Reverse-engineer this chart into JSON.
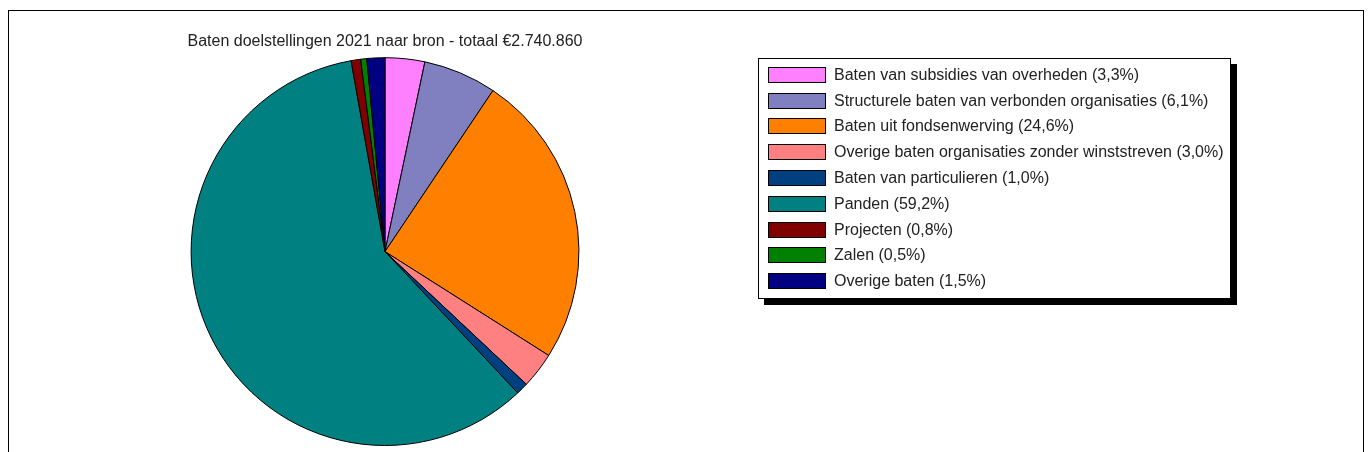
{
  "chart_data": {
    "type": "pie",
    "title": "Baten doelstellingen 2021 naar bron - totaal €2.740.860",
    "categories": [
      "Baten van subsidies van overheden (3,3%)",
      "Structurele baten van verbonden organisaties (6,1%)",
      "Baten uit fondsenwerving (24,6%)",
      "Overige baten organisaties zonder winststreven (3,0%)",
      "Baten van particulieren (1,0%)",
      "Panden (59,2%)",
      "Projecten (0,8%)",
      "Zalen (0,5%)",
      "Overige baten (1,5%)"
    ],
    "values": [
      3.3,
      6.1,
      24.6,
      3.0,
      1.0,
      59.2,
      0.8,
      0.5,
      1.5
    ],
    "colors": [
      "#ff80ff",
      "#8080c0",
      "#ff8000",
      "#ff8080",
      "#004080",
      "#008080",
      "#800000",
      "#008000",
      "#000080"
    ],
    "legend": "top right"
  }
}
